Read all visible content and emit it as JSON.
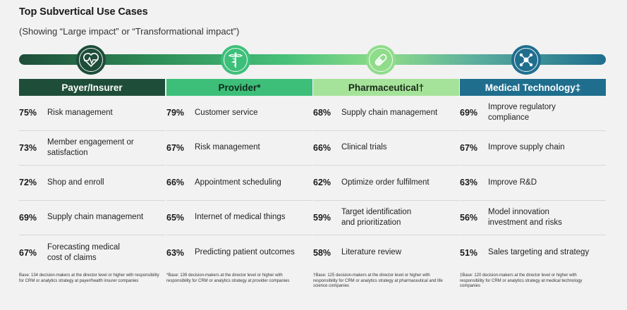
{
  "header": {
    "title": "Top Subvertical Use Cases",
    "subtitle": "(Showing “Large impact” or “Transformational impact”)"
  },
  "colors": {
    "payer": "#1e4d3a",
    "provider": "#3dbf7a",
    "pharma": "#a6e39a",
    "medtech": "#1f6e8e"
  },
  "icons": {
    "payer": "heart-monitor-icon",
    "provider": "caduceus-icon",
    "pharma": "pill-capsule-icon",
    "medtech": "molecule-network-icon"
  },
  "columns": [
    {
      "name": "Payer/Insurer",
      "items": [
        {
          "pct": "75%",
          "label": "Risk management"
        },
        {
          "pct": "73%",
          "label": "Member engagement or satisfaction"
        },
        {
          "pct": "72%",
          "label": "Shop and enroll"
        },
        {
          "pct": "69%",
          "label": "Supply chain management"
        },
        {
          "pct": "67%",
          "label": "Forecasting medical cost of claims"
        }
      ],
      "base": "Base: 134 decision-makers at the director level or higher with responsibility for CRM or analytics strategy at payer/health insurer companies"
    },
    {
      "name": "Provider*",
      "items": [
        {
          "pct": "79%",
          "label": "Customer service"
        },
        {
          "pct": "67%",
          "label": "Risk management"
        },
        {
          "pct": "66%",
          "label": "Appointment scheduling"
        },
        {
          "pct": "65%",
          "label": "Internet of medical things"
        },
        {
          "pct": "63%",
          "label": "Predicting patient outcomes"
        }
      ],
      "base": "*Base: 139 decision-makers at the director level or higher with responsibility for CRM or analytics strategy at provider companies"
    },
    {
      "name": "Pharmaceutical†",
      "items": [
        {
          "pct": "68%",
          "label": "Supply chain management"
        },
        {
          "pct": "66%",
          "label": "Clinical trials"
        },
        {
          "pct": "62%",
          "label": "Optimize order fulfilment"
        },
        {
          "pct": "59%",
          "label": "Target identification and prioritization"
        },
        {
          "pct": "58%",
          "label": "Literature review"
        }
      ],
      "base": "†Base: 125 decision-makers at the director level or higher with responsibility for CRM or analytics strategy at pharmaceutical and life science companies"
    },
    {
      "name": "Medical Technology‡",
      "items": [
        {
          "pct": "69%",
          "label": "Improve regulatory compliance"
        },
        {
          "pct": "67%",
          "label": "Improve supply chain"
        },
        {
          "pct": "63%",
          "label": "Improve R&D"
        },
        {
          "pct": "56%",
          "label": "Model innovation investment and risks"
        },
        {
          "pct": "51%",
          "label": "Sales targeting and strategy"
        }
      ],
      "base": "‡Base: 120 decision-makers at the director level or higher with responsibility for CRM or analytics strategy at medical technology companies"
    }
  ]
}
